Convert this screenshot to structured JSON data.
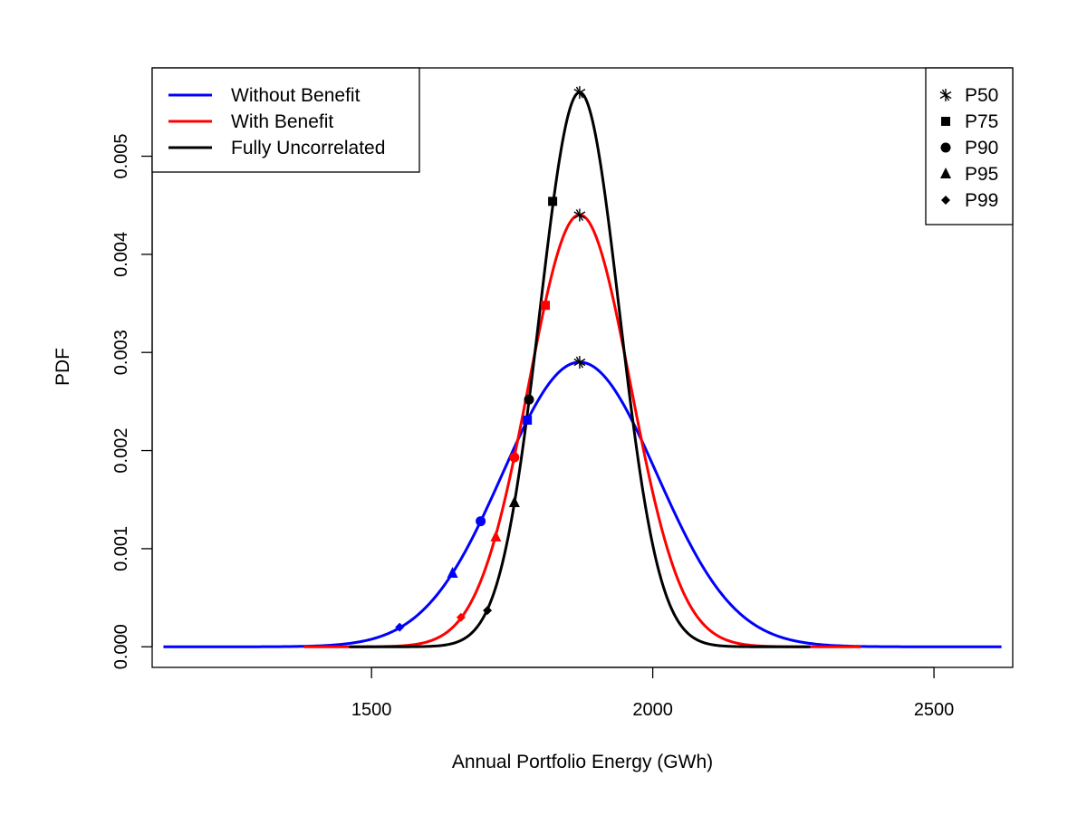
{
  "chart_data": {
    "type": "line",
    "title": "",
    "xlabel": "Annual Portfolio Energy (GWh)",
    "ylabel": "PDF",
    "xlim": [
      1110,
      2640
    ],
    "ylim": [
      -0.00021,
      0.0059
    ],
    "x_ticks": [
      1500,
      2000,
      2500
    ],
    "x_tick_labels": [
      "1500",
      "2000",
      "2500"
    ],
    "y_ticks": [
      0,
      0.001,
      0.002,
      0.003,
      0.004,
      0.005
    ],
    "y_tick_labels": [
      "0.000",
      "0.001",
      "0.002",
      "0.003",
      "0.004",
      "0.005"
    ],
    "grid": false,
    "series": [
      {
        "name": "Without Benefit",
        "color": "#0000ff",
        "distribution": "normal",
        "mean": 1870,
        "sd": 137.5,
        "x_range": [
          1130,
          2620
        ],
        "percentile_markers": [
          {
            "label": "P50",
            "x": 1870,
            "y": 0.0029
          },
          {
            "label": "P75",
            "x": 1777,
            "y": 0.00231
          },
          {
            "label": "P90",
            "x": 1694,
            "y": 0.00128
          },
          {
            "label": "P95",
            "x": 1644,
            "y": 0.00075
          },
          {
            "label": "P99",
            "x": 1550,
            "y": 0.0002
          }
        ]
      },
      {
        "name": "With Benefit",
        "color": "#ff0000",
        "distribution": "normal",
        "mean": 1870,
        "sd": 90.6,
        "x_range": [
          1380,
          2370
        ],
        "percentile_markers": [
          {
            "label": "P50",
            "x": 1870,
            "y": 0.0044
          },
          {
            "label": "P75",
            "x": 1809,
            "y": 0.00348
          },
          {
            "label": "P90",
            "x": 1754,
            "y": 0.00193
          },
          {
            "label": "P95",
            "x": 1721,
            "y": 0.00112
          },
          {
            "label": "P99",
            "x": 1659,
            "y": 0.0003
          }
        ]
      },
      {
        "name": "Fully Uncorrelated",
        "color": "#000000",
        "distribution": "normal",
        "mean": 1870,
        "sd": 70.6,
        "x_range": [
          1460,
          2280
        ],
        "percentile_markers": [
          {
            "label": "P50",
            "x": 1870,
            "y": 0.00565
          },
          {
            "label": "P75",
            "x": 1822,
            "y": 0.00454
          },
          {
            "label": "P90",
            "x": 1780,
            "y": 0.00252
          },
          {
            "label": "P95",
            "x": 1754,
            "y": 0.00147
          },
          {
            "label": "P99",
            "x": 1706,
            "y": 0.00037
          }
        ]
      }
    ],
    "legend_series": {
      "placement": "top-left",
      "entries": [
        {
          "label": "Without Benefit",
          "color": "#0000ff"
        },
        {
          "label": "With Benefit",
          "color": "#ff0000"
        },
        {
          "label": "Fully Uncorrelated",
          "color": "#000000"
        }
      ]
    },
    "legend_markers": {
      "placement": "top-right",
      "entries": [
        {
          "label": "P50",
          "marker": "asterisk"
        },
        {
          "label": "P75",
          "marker": "square"
        },
        {
          "label": "P90",
          "marker": "circle"
        },
        {
          "label": "P95",
          "marker": "triangle"
        },
        {
          "label": "P99",
          "marker": "diamond"
        }
      ]
    }
  }
}
